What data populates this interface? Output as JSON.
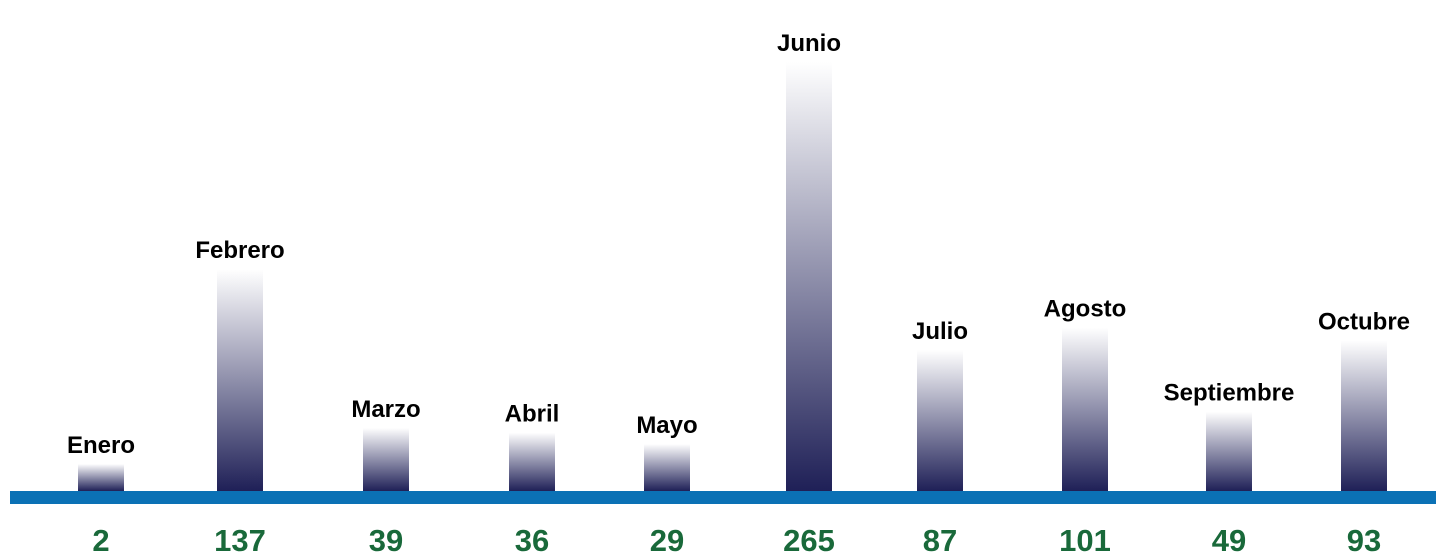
{
  "chart_data": {
    "type": "bar",
    "title": "",
    "xlabel": "",
    "ylabel": "",
    "categories": [
      "Enero",
      "Febrero",
      "Marzo",
      "Abril",
      "Mayo",
      "Junio",
      "Julio",
      "Agosto",
      "Septiembre",
      "Octubre"
    ],
    "values": [
      2,
      137,
      39,
      36,
      29,
      265,
      87,
      101,
      49,
      93
    ],
    "ylim": [
      0,
      265
    ],
    "grid": false,
    "legend": "none",
    "colors": {
      "bar_top": "#ffffff",
      "bar_bottom": "#1f2057",
      "baseline": "#0b71b5",
      "category_label": "#000000",
      "value_label": "#19693a"
    }
  }
}
